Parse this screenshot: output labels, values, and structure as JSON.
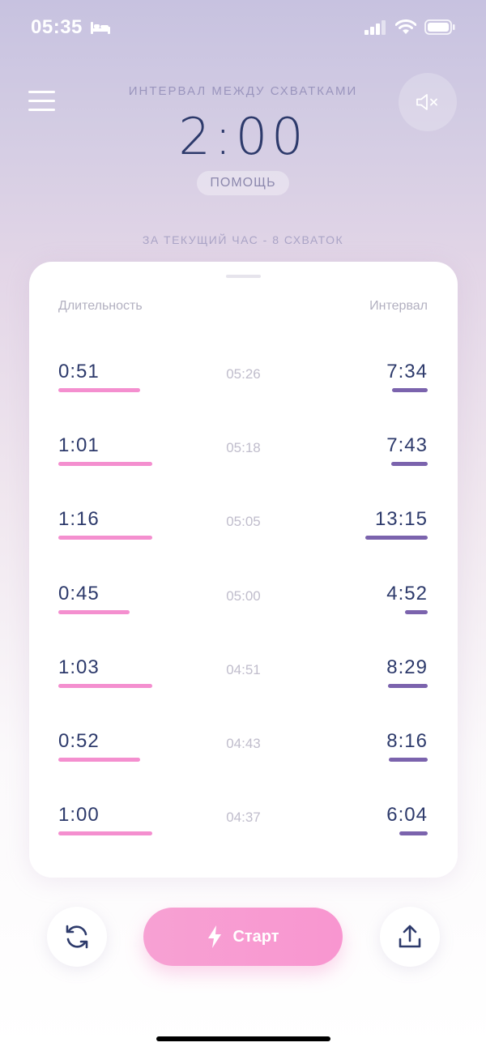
{
  "status_bar": {
    "time": "05:35"
  },
  "header": {
    "interval_title": "ИНТЕРВАЛ МЕЖДУ СХВАТКАМИ",
    "interval_value": "2:00",
    "help_label": "ПОМОЩЬ",
    "hour_summary": "ЗА ТЕКУЩИЙ ЧАС - 8 СХВАТОК"
  },
  "table": {
    "col_duration": "Длительность",
    "col_interval": "Интервал",
    "rows": [
      {
        "duration": "0:51",
        "time": "05:26",
        "interval": "7:34"
      },
      {
        "duration": "1:01",
        "time": "05:18",
        "interval": "7:43"
      },
      {
        "duration": "1:16",
        "time": "05:05",
        "interval": "13:15"
      },
      {
        "duration": "0:45",
        "time": "05:00",
        "interval": "4:52"
      },
      {
        "duration": "1:03",
        "time": "04:51",
        "interval": "8:29"
      },
      {
        "duration": "0:52",
        "time": "04:43",
        "interval": "8:16"
      },
      {
        "duration": "1:00",
        "time": "04:37",
        "interval": "6:04"
      }
    ]
  },
  "actions": {
    "start_label": "Старт"
  },
  "colors": {
    "duration_bar": "#f48fcf",
    "interval_bar": "#7b63ad",
    "start_button": "#f896d0"
  }
}
